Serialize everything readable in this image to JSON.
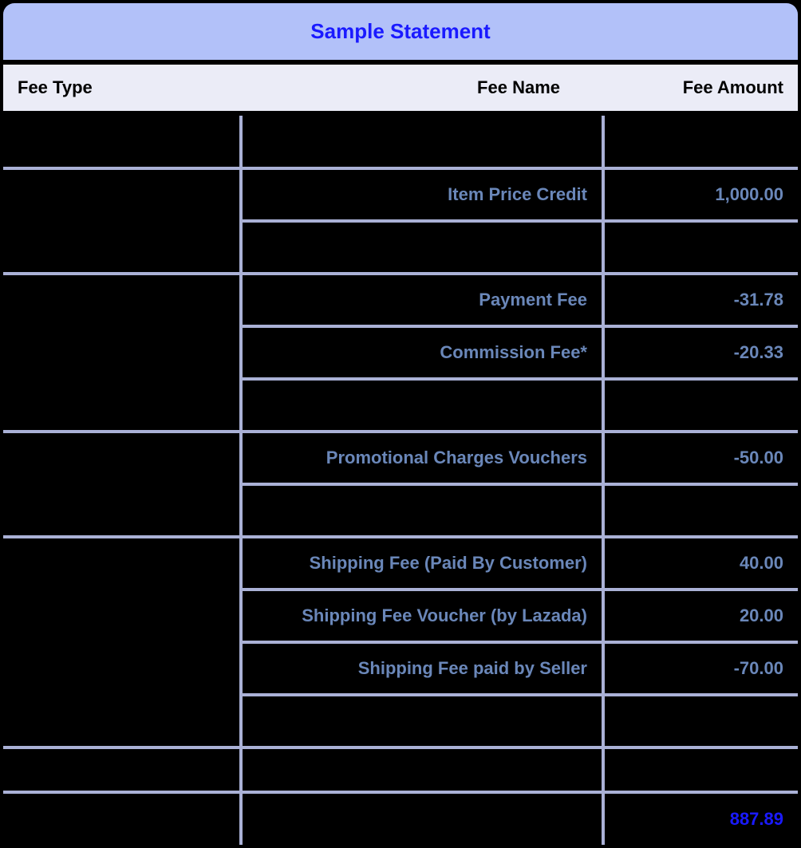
{
  "title": "Sample Statement",
  "colors": {
    "title_bg": "#b2c1f9",
    "title_text": "#1a1aff",
    "header_bg": "#ebecf7",
    "header_text": "#000000",
    "cell_bg": "#000000",
    "cell_text": "#6a87b9",
    "border": "#aab1d6",
    "total_text": "#1a1aff",
    "page_bg": "#000000"
  },
  "columns": {
    "type": "Fee Type",
    "name": "Fee Name",
    "amount": "Fee Amount"
  },
  "rows": [
    {
      "type": "",
      "name": "",
      "amount": "",
      "rowspan_type": 1
    },
    {
      "type": "",
      "name": "Item Price Credit",
      "amount": "1,000.00",
      "rowspan_type": 2
    },
    {
      "name": "",
      "amount": ""
    },
    {
      "type": "",
      "name": "Payment Fee",
      "amount": "-31.78",
      "rowspan_type": 3
    },
    {
      "name": "Commission Fee*",
      "amount": "-20.33"
    },
    {
      "name": "",
      "amount": ""
    },
    {
      "type": "",
      "name": "Promotional Charges Vouchers",
      "amount": "-50.00",
      "rowspan_type": 2
    },
    {
      "name": "",
      "amount": ""
    },
    {
      "type": "",
      "name": "Shipping Fee (Paid By Customer)",
      "amount": "40.00",
      "rowspan_type": 4
    },
    {
      "name": "Shipping Fee Voucher (by Lazada)",
      "amount": "20.00"
    },
    {
      "name": "Shipping Fee paid by Seller",
      "amount": "-70.00"
    },
    {
      "name": "",
      "amount": ""
    },
    {
      "type": "",
      "name": "",
      "amount": "",
      "rowspan_type": 1,
      "gap": true
    }
  ],
  "total": "887.89"
}
